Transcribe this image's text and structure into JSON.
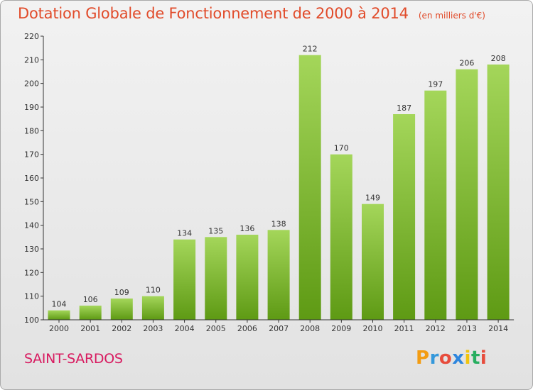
{
  "header": {
    "title": "Dotation Globale de Fonctionnement de 2000 à 2014",
    "unit": "(en milliers d'€)"
  },
  "footer": {
    "commune": "SAINT-SARDOS",
    "logo_letters": [
      "P",
      "r",
      "o",
      "x",
      "i",
      "t",
      "i"
    ],
    "logo_colors": [
      "#f39c12",
      "#3498db",
      "#e74c3c",
      "#2e86de",
      "#f1c40f",
      "#27ae60",
      "#e74c3c"
    ]
  },
  "colors": {
    "bar_light": "#a4d65a",
    "bar_dark": "#5e9a14",
    "title": "#e14b2a",
    "commune": "#d81b60"
  },
  "chart_data": {
    "type": "bar",
    "categories": [
      "2000",
      "2001",
      "2002",
      "2003",
      "2004",
      "2005",
      "2006",
      "2007",
      "2008",
      "2009",
      "2010",
      "2011",
      "2012",
      "2013",
      "2014"
    ],
    "values": [
      104,
      106,
      109,
      110,
      134,
      135,
      136,
      138,
      212,
      170,
      149,
      187,
      197,
      206,
      208
    ],
    "ylim": [
      100,
      220
    ],
    "yticks": [
      100,
      110,
      120,
      130,
      140,
      150,
      160,
      170,
      180,
      190,
      200,
      210,
      220
    ],
    "grid": false,
    "title": "Dotation Globale de Fonctionnement de 2000 à 2014",
    "xlabel": "",
    "ylabel": ""
  }
}
